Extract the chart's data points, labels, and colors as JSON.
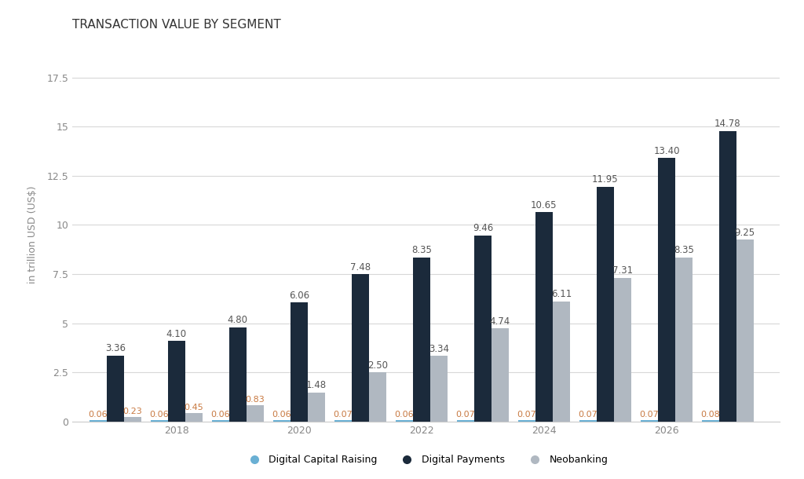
{
  "title": "TRANSACTION VALUE BY SEGMENT",
  "ylabel": "in trillion USD (US$)",
  "background_color": "#ffffff",
  "years": [
    2017,
    2018,
    2019,
    2020,
    2021,
    2022,
    2023,
    2024,
    2025,
    2026,
    2027
  ],
  "xtick_labels": [
    "2018",
    "2020",
    "2022",
    "2024",
    "2026"
  ],
  "xtick_positions": [
    2018,
    2020,
    2022,
    2024,
    2026
  ],
  "dcr_values": [
    0.06,
    0.06,
    0.06,
    0.06,
    0.07,
    0.06,
    0.07,
    0.07,
    0.07,
    0.07,
    0.08
  ],
  "dp_values": [
    3.36,
    4.1,
    4.8,
    6.06,
    7.48,
    8.35,
    9.46,
    10.65,
    11.95,
    13.4,
    14.78
  ],
  "neo_values": [
    0.23,
    0.45,
    0.83,
    1.48,
    2.5,
    3.34,
    4.74,
    6.11,
    7.31,
    8.35,
    9.25
  ],
  "color_dcr": "#6ab0d4",
  "color_dp": "#1b2a3b",
  "color_neo": "#b0b8c1",
  "ylim": [
    0,
    19
  ],
  "yticks": [
    0,
    2.5,
    5.0,
    7.5,
    10.0,
    12.5,
    15.0,
    17.5
  ],
  "bar_width": 0.28,
  "title_fontsize": 11,
  "label_fontsize": 8.5,
  "tick_fontsize": 9,
  "legend_fontsize": 9
}
